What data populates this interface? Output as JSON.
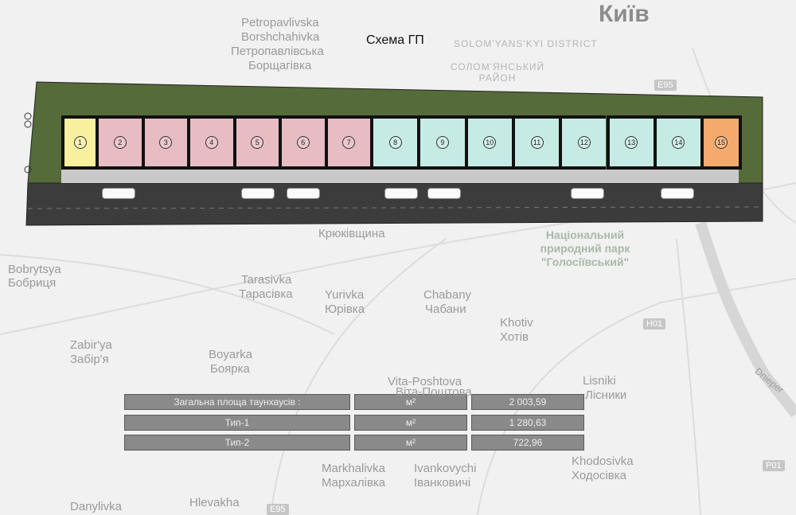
{
  "title": "Схема ГП",
  "map_labels": {
    "kyiv": "Київ",
    "petro_en": "Petropavlivska",
    "borsh_en": "Borshchahivka",
    "petro_uk": "Петропавлівська",
    "borsh_uk": "Борщагівка",
    "solom_en": "SOLOM'YANS'KYI DISTRICT",
    "solom_uk": "СОЛОМ'ЯНСЬКИЙ РАЙОН",
    "kriuk": "Крюківщина",
    "park": "Національний природний парк \"Голосіївський\"",
    "bobr_en": "Bobrytsya",
    "bobr_uk": "Бобриця",
    "taras_en": "Tarasivka",
    "taras_uk": "Тарасівка",
    "yur_en": "Yurivka",
    "yur_uk": "Юрівка",
    "chab_en": "Chabany",
    "chab_uk": "Чабани",
    "khot_en": "Khotiv",
    "khot_uk": "Хотів",
    "zab_en": "Zabir'ya",
    "zab_uk": "Забір'я",
    "boy_en": "Boyarka",
    "boy_uk": "Боярка",
    "vita_en": "Vita-Poshtova",
    "vita_uk": "Віта-Поштова",
    "lis_en": "Lisniki",
    "lis_uk": "Лісники",
    "mark_en": "Markhalivka",
    "mark_uk": "Мархалівка",
    "ivan_en": "Ivankovychi",
    "ivan_uk": "Іванковичі",
    "khod_en": "Khodosivka",
    "khod_uk": "Ходосівка",
    "dan_en": "Danylivka",
    "hlev_en": "Hlevakha",
    "dnipro": "Dnieper",
    "e95": "E95",
    "h01": "H01",
    "p01": "P01",
    "e95b": "E95"
  },
  "plan": {
    "units": [
      {
        "n": "1",
        "type": "end",
        "color": "#f8ef9f"
      },
      {
        "n": "2",
        "type": "Тип-1",
        "color": "#e7bcc3"
      },
      {
        "n": "3",
        "type": "Тип-1",
        "color": "#e7bcc3"
      },
      {
        "n": "4",
        "type": "Тип-1",
        "color": "#e7bcc3"
      },
      {
        "n": "5",
        "type": "Тип-1",
        "color": "#e7bcc3"
      },
      {
        "n": "6",
        "type": "Тип-1",
        "color": "#e7bcc3"
      },
      {
        "n": "7",
        "type": "Тип-1",
        "color": "#e7bcc3"
      },
      {
        "n": "8",
        "type": "Тип-2",
        "color": "#c6ebe4"
      },
      {
        "n": "9",
        "type": "Тип-2",
        "color": "#c6ebe4"
      },
      {
        "n": "10",
        "type": "Тип-2",
        "color": "#c6ebe4"
      },
      {
        "n": "11",
        "type": "Тип-2",
        "color": "#c6ebe4"
      },
      {
        "n": "12",
        "type": "Тип-2",
        "color": "#c6ebe4"
      },
      {
        "n": "13",
        "type": "Тип-2",
        "color": "#c6ebe4"
      },
      {
        "n": "14",
        "type": "Тип-2",
        "color": "#c6ebe4"
      },
      {
        "n": "15",
        "type": "end",
        "color": "#f4aa6c"
      }
    ]
  },
  "table": [
    {
      "label": "Загальна площа таунхаусів :",
      "unit": "м²",
      "value": "2 003,59"
    },
    {
      "label": "Тип-1",
      "unit": "м²",
      "value": "1 280,63"
    },
    {
      "label": "Тип-2",
      "unit": "м²",
      "value": "722,96"
    }
  ]
}
